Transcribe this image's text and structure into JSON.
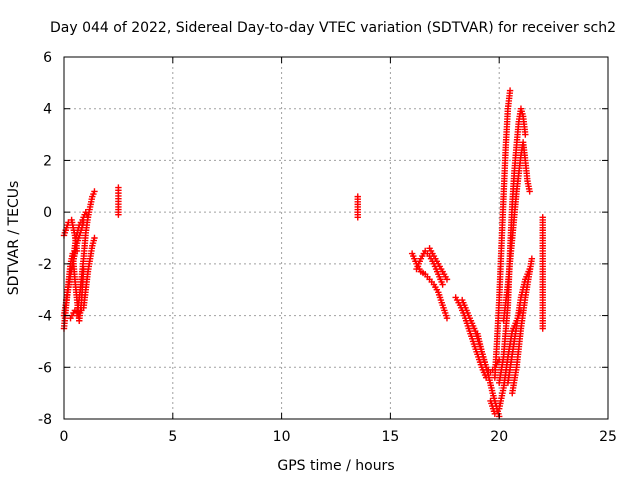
{
  "chart_data": {
    "type": "scatter",
    "title": "Day 044 of 2022, Sidereal Day-to-day VTEC variation (SDTVAR) for receiver sch2",
    "xlabel": "GPS time / hours",
    "ylabel": "SDTVAR / TECUs",
    "xlim": [
      0,
      25
    ],
    "ylim": [
      -8,
      6
    ],
    "xticks": [
      0,
      5,
      10,
      15,
      20,
      25
    ],
    "yticks": [
      -8,
      -6,
      -4,
      -2,
      0,
      2,
      4,
      6
    ],
    "grid": true,
    "marker_color": "#ff0000",
    "marker": "plus",
    "segments": [
      {
        "points": [
          [
            0.0,
            -0.9
          ],
          [
            0.2,
            -0.4
          ],
          [
            0.35,
            -0.3
          ],
          [
            0.5,
            -0.9
          ],
          [
            0.6,
            -1.5
          ]
        ]
      },
      {
        "points": [
          [
            0.0,
            -4.5
          ],
          [
            0.1,
            -3.6
          ],
          [
            0.2,
            -2.8
          ],
          [
            0.3,
            -2.0
          ],
          [
            0.4,
            -1.6
          ],
          [
            0.5,
            -2.6
          ],
          [
            0.6,
            -3.4
          ],
          [
            0.7,
            -4.2
          ],
          [
            0.8,
            -3.5
          ],
          [
            0.9,
            -2.2
          ]
        ]
      },
      {
        "points": [
          [
            0.1,
            -3.4
          ],
          [
            0.25,
            -2.6
          ],
          [
            0.4,
            -2.0
          ],
          [
            0.55,
            -1.0
          ],
          [
            0.7,
            -0.5
          ],
          [
            0.85,
            -0.3
          ],
          [
            1.0,
            0.0
          ],
          [
            1.1,
            -0.2
          ]
        ]
      },
      {
        "points": [
          [
            0.6,
            -4.0
          ],
          [
            0.75,
            -3.0
          ],
          [
            0.9,
            -1.8
          ],
          [
            1.0,
            -0.8
          ],
          [
            1.1,
            -0.2
          ],
          [
            1.2,
            0.2
          ],
          [
            1.3,
            0.6
          ],
          [
            1.4,
            0.8
          ]
        ]
      },
      {
        "points": [
          [
            0.3,
            -4.1
          ],
          [
            0.5,
            -3.8
          ],
          [
            0.7,
            -3.9
          ],
          [
            0.9,
            -3.7
          ],
          [
            1.0,
            -3.0
          ],
          [
            1.1,
            -2.3
          ],
          [
            1.2,
            -1.8
          ],
          [
            1.3,
            -1.3
          ],
          [
            1.4,
            -1.0
          ]
        ]
      },
      {
        "points": [
          [
            0.0,
            -4.0
          ],
          [
            0.15,
            -3.2
          ],
          [
            0.3,
            -2.4
          ],
          [
            0.45,
            -1.8
          ],
          [
            0.6,
            -1.2
          ],
          [
            0.75,
            -0.8
          ],
          [
            0.9,
            -0.4
          ]
        ]
      },
      {
        "points": [
          [
            2.5,
            0.95
          ],
          [
            2.5,
            0.2
          ],
          [
            2.5,
            -0.1
          ]
        ]
      },
      {
        "points": [
          [
            13.5,
            0.6
          ],
          [
            13.5,
            0.3
          ],
          [
            13.5,
            0.0
          ],
          [
            13.5,
            -0.2
          ]
        ]
      },
      {
        "points": [
          [
            16.0,
            -1.6
          ],
          [
            16.2,
            -2.0
          ],
          [
            16.4,
            -2.3
          ],
          [
            16.6,
            -2.4
          ],
          [
            16.8,
            -2.6
          ],
          [
            17.0,
            -2.8
          ],
          [
            17.2,
            -3.1
          ],
          [
            17.4,
            -3.6
          ],
          [
            17.6,
            -4.1
          ]
        ]
      },
      {
        "points": [
          [
            16.2,
            -2.2
          ],
          [
            16.4,
            -1.8
          ],
          [
            16.6,
            -1.5
          ],
          [
            16.8,
            -1.7
          ],
          [
            17.0,
            -2.0
          ],
          [
            17.2,
            -2.4
          ],
          [
            17.4,
            -2.8
          ]
        ]
      },
      {
        "points": [
          [
            16.8,
            -1.4
          ],
          [
            17.0,
            -1.7
          ],
          [
            17.2,
            -2.0
          ],
          [
            17.4,
            -2.3
          ],
          [
            17.6,
            -2.6
          ]
        ]
      },
      {
        "points": [
          [
            18.0,
            -3.3
          ],
          [
            18.2,
            -3.6
          ],
          [
            18.4,
            -4.0
          ],
          [
            18.6,
            -4.5
          ],
          [
            18.8,
            -5.0
          ],
          [
            19.0,
            -5.5
          ],
          [
            19.2,
            -6.0
          ],
          [
            19.4,
            -6.4
          ]
        ]
      },
      {
        "points": [
          [
            18.3,
            -3.4
          ],
          [
            18.6,
            -4.0
          ],
          [
            18.9,
            -4.6
          ],
          [
            19.2,
            -5.4
          ],
          [
            19.5,
            -6.3
          ],
          [
            19.7,
            -7.0
          ],
          [
            19.9,
            -7.6
          ],
          [
            20.0,
            -7.9
          ]
        ]
      },
      {
        "points": [
          [
            19.0,
            -4.7
          ],
          [
            19.2,
            -5.4
          ],
          [
            19.4,
            -6.0
          ],
          [
            19.6,
            -6.2
          ],
          [
            19.8,
            -6.0
          ],
          [
            20.0,
            -5.7
          ]
        ]
      },
      {
        "points": [
          [
            19.8,
            -6.4
          ],
          [
            19.9,
            -5.0
          ],
          [
            20.0,
            -3.4
          ],
          [
            20.1,
            -1.4
          ],
          [
            20.2,
            0.6
          ],
          [
            20.3,
            2.5
          ],
          [
            20.4,
            4.0
          ],
          [
            20.5,
            4.7
          ]
        ]
      },
      {
        "points": [
          [
            19.6,
            -7.3
          ],
          [
            19.8,
            -7.8
          ],
          [
            20.0,
            -7.6
          ],
          [
            20.2,
            -6.8
          ],
          [
            20.4,
            -5.6
          ],
          [
            20.6,
            -4.6
          ],
          [
            20.8,
            -4.2
          ],
          [
            21.0,
            -3.8
          ]
        ]
      },
      {
        "points": [
          [
            20.0,
            -6.6
          ],
          [
            20.2,
            -5.6
          ],
          [
            20.4,
            -3.6
          ],
          [
            20.5,
            -1.5
          ],
          [
            20.6,
            0.3
          ],
          [
            20.7,
            1.6
          ],
          [
            20.8,
            2.6
          ],
          [
            20.9,
            3.5
          ],
          [
            21.0,
            4.0
          ],
          [
            21.1,
            3.7
          ],
          [
            21.2,
            3.0
          ]
        ]
      },
      {
        "points": [
          [
            20.2,
            -4.2
          ],
          [
            20.4,
            -2.8
          ],
          [
            20.6,
            -1.0
          ],
          [
            20.8,
            0.8
          ],
          [
            21.0,
            2.2
          ],
          [
            21.1,
            2.7
          ],
          [
            21.2,
            2.0
          ],
          [
            21.3,
            1.2
          ],
          [
            21.4,
            0.8
          ]
        ]
      },
      {
        "points": [
          [
            20.4,
            -6.6
          ],
          [
            20.6,
            -5.5
          ],
          [
            20.8,
            -4.4
          ],
          [
            21.0,
            -3.3
          ],
          [
            21.2,
            -2.6
          ],
          [
            21.4,
            -2.2
          ]
        ]
      },
      {
        "points": [
          [
            20.6,
            -7.0
          ],
          [
            20.8,
            -6.0
          ],
          [
            21.0,
            -4.5
          ],
          [
            21.2,
            -3.3
          ],
          [
            21.4,
            -2.3
          ],
          [
            21.5,
            -1.8
          ]
        ]
      },
      {
        "points": [
          [
            22.0,
            -0.2
          ],
          [
            22.0,
            -0.6
          ],
          [
            22.0,
            -1.7
          ],
          [
            22.0,
            -1.9
          ],
          [
            22.0,
            -4.5
          ]
        ]
      }
    ]
  }
}
